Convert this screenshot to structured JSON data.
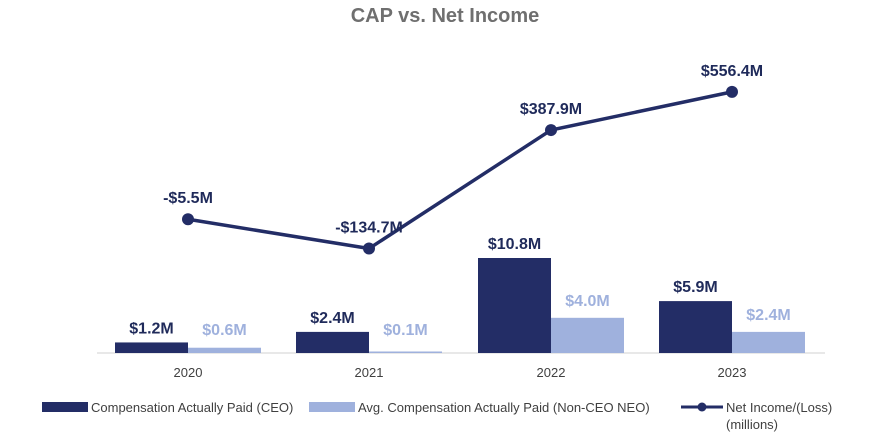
{
  "chart_data": {
    "type": "bar+line",
    "title": "CAP vs. Net Income",
    "categories": [
      "2020",
      "2021",
      "2022",
      "2023"
    ],
    "series": [
      {
        "name": "Compensation Actually Paid (CEO)",
        "kind": "bar",
        "color": "#232d66",
        "values": [
          1.2,
          2.4,
          10.8,
          5.9
        ],
        "labels": [
          "$1.2M",
          "$2.4M",
          "$10.8M",
          "$5.9M"
        ]
      },
      {
        "name": "Avg. Compensation Actually Paid (Non-CEO NEO)",
        "kind": "bar",
        "color": "#9fb1dd",
        "values": [
          0.6,
          0.1,
          4.0,
          2.4
        ],
        "labels": [
          "$0.6M",
          "$0.1M",
          "$4.0M",
          "$2.4M"
        ]
      },
      {
        "name": "Net Income/(Loss)",
        "name_line2": "(millions)",
        "kind": "line",
        "color": "#232d66",
        "values": [
          -5.5,
          -134.7,
          387.9,
          556.4
        ],
        "labels": [
          "-$5.5M",
          "-$134.7M",
          "$387.9M",
          "$556.4M"
        ]
      }
    ],
    "bar_axis_range": [
      0,
      15
    ],
    "line_axis_range": [
      -400,
      700
    ],
    "grid": false,
    "legend_position": "bottom"
  }
}
